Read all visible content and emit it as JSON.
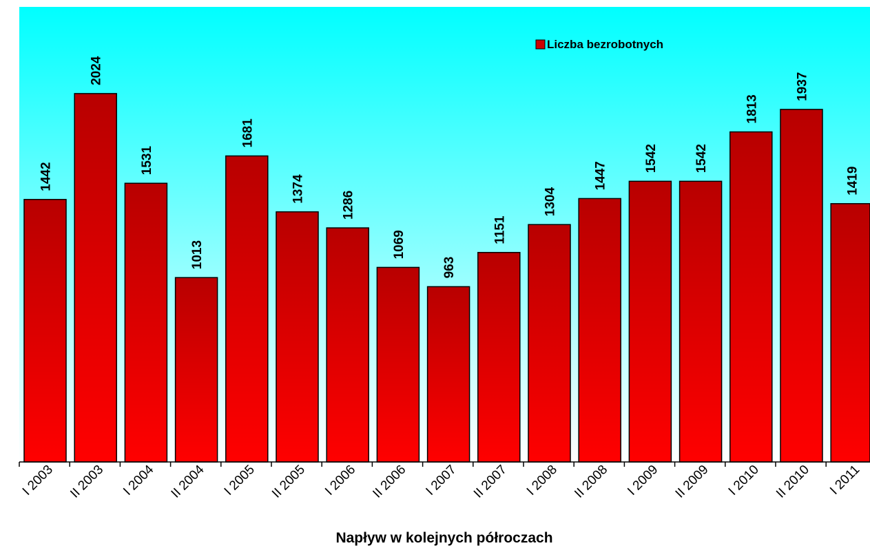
{
  "chart_data": {
    "type": "bar",
    "title": "",
    "xlabel": "Napływ w kolejnych półroczach",
    "ylabel": "",
    "categories": [
      "I 2003",
      "II 2003",
      "I 2004",
      "II 2004",
      "I 2005",
      "II 2005",
      "I 2006",
      "II 2006",
      "I 2007",
      "II 2007",
      "I 2008",
      "II 2008",
      "I 2009",
      "II 2009",
      "I 2010",
      "II 2010",
      "I 2011"
    ],
    "series": [
      {
        "name": "Liczba bezrobotnych",
        "values": [
          1442,
          2024,
          1531,
          1013,
          1681,
          1374,
          1286,
          1069,
          963,
          1151,
          1304,
          1447,
          1542,
          1542,
          1813,
          1937,
          1419
        ]
      }
    ],
    "ylim": [
      0,
      2500
    ],
    "grid": false,
    "legend": "top-right",
    "colors": {
      "bar_top": "#b80000",
      "bar_bottom": "#ff0000",
      "plot_bg_top": "#00ffff",
      "plot_bg_bottom": "#ffffff"
    }
  }
}
